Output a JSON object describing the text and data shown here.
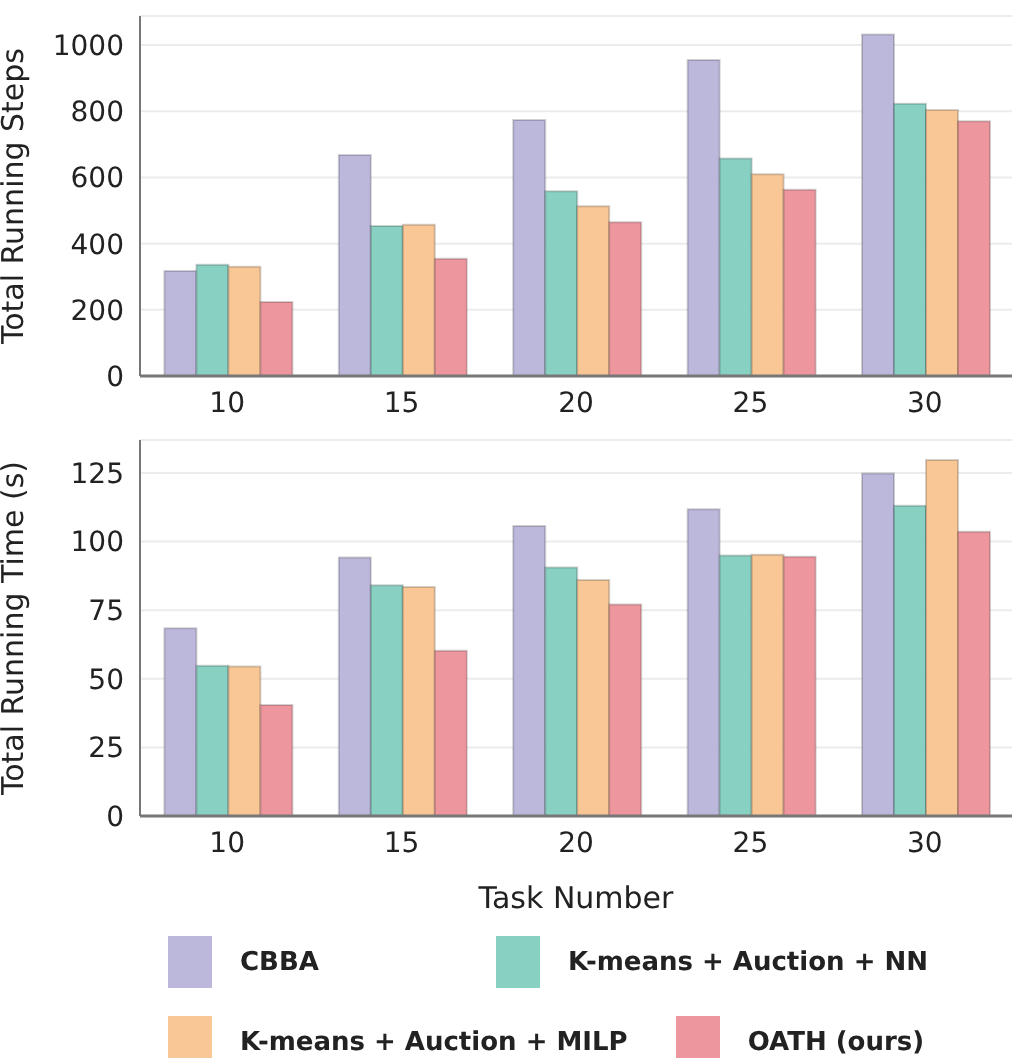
{
  "chart_data": [
    {
      "type": "bar",
      "ylabel": "Total Running Steps",
      "categories": [
        "10",
        "15",
        "20",
        "25",
        "30"
      ],
      "series": [
        {
          "color": "#bcb8dc",
          "values": [
            317,
            668,
            774,
            955,
            1032
          ]
        },
        {
          "color": "#88d0c2",
          "values": [
            336,
            453,
            558,
            657,
            823
          ]
        },
        {
          "color": "#f9c695",
          "values": [
            330,
            457,
            513,
            610,
            804
          ]
        },
        {
          "color": "#ee969e",
          "values": [
            224,
            354,
            465,
            563,
            770
          ]
        }
      ],
      "ylim": [
        0,
        1088
      ],
      "yticks": [
        0,
        200,
        400,
        600,
        800,
        1000
      ],
      "grid": "y"
    },
    {
      "type": "bar",
      "xlabel": "Task Number",
      "ylabel": "Total Running Time (s)",
      "categories": [
        "10",
        "15",
        "20",
        "25",
        "30"
      ],
      "series": [
        {
          "name": "CBBA",
          "color": "#bcb8dc",
          "values": [
            68.4,
            94.2,
            105.7,
            111.8,
            124.8
          ]
        },
        {
          "name": "K-means + Auction + NN",
          "color": "#88d0c2",
          "values": [
            54.7,
            84.1,
            90.5,
            94.9,
            113
          ]
        },
        {
          "name": "K-means + Auction + MILP",
          "color": "#f9c695",
          "values": [
            54.5,
            83.4,
            86,
            95.2,
            129.7
          ]
        },
        {
          "name": "OATH (ours)",
          "color": "#ee969e",
          "values": [
            40.4,
            60.2,
            77.1,
            94.5,
            103.6
          ]
        }
      ],
      "ylim": [
        0,
        137
      ],
      "yticks": [
        0,
        25,
        50,
        75,
        100,
        125
      ],
      "grid": "y",
      "legend": "bottom"
    }
  ]
}
